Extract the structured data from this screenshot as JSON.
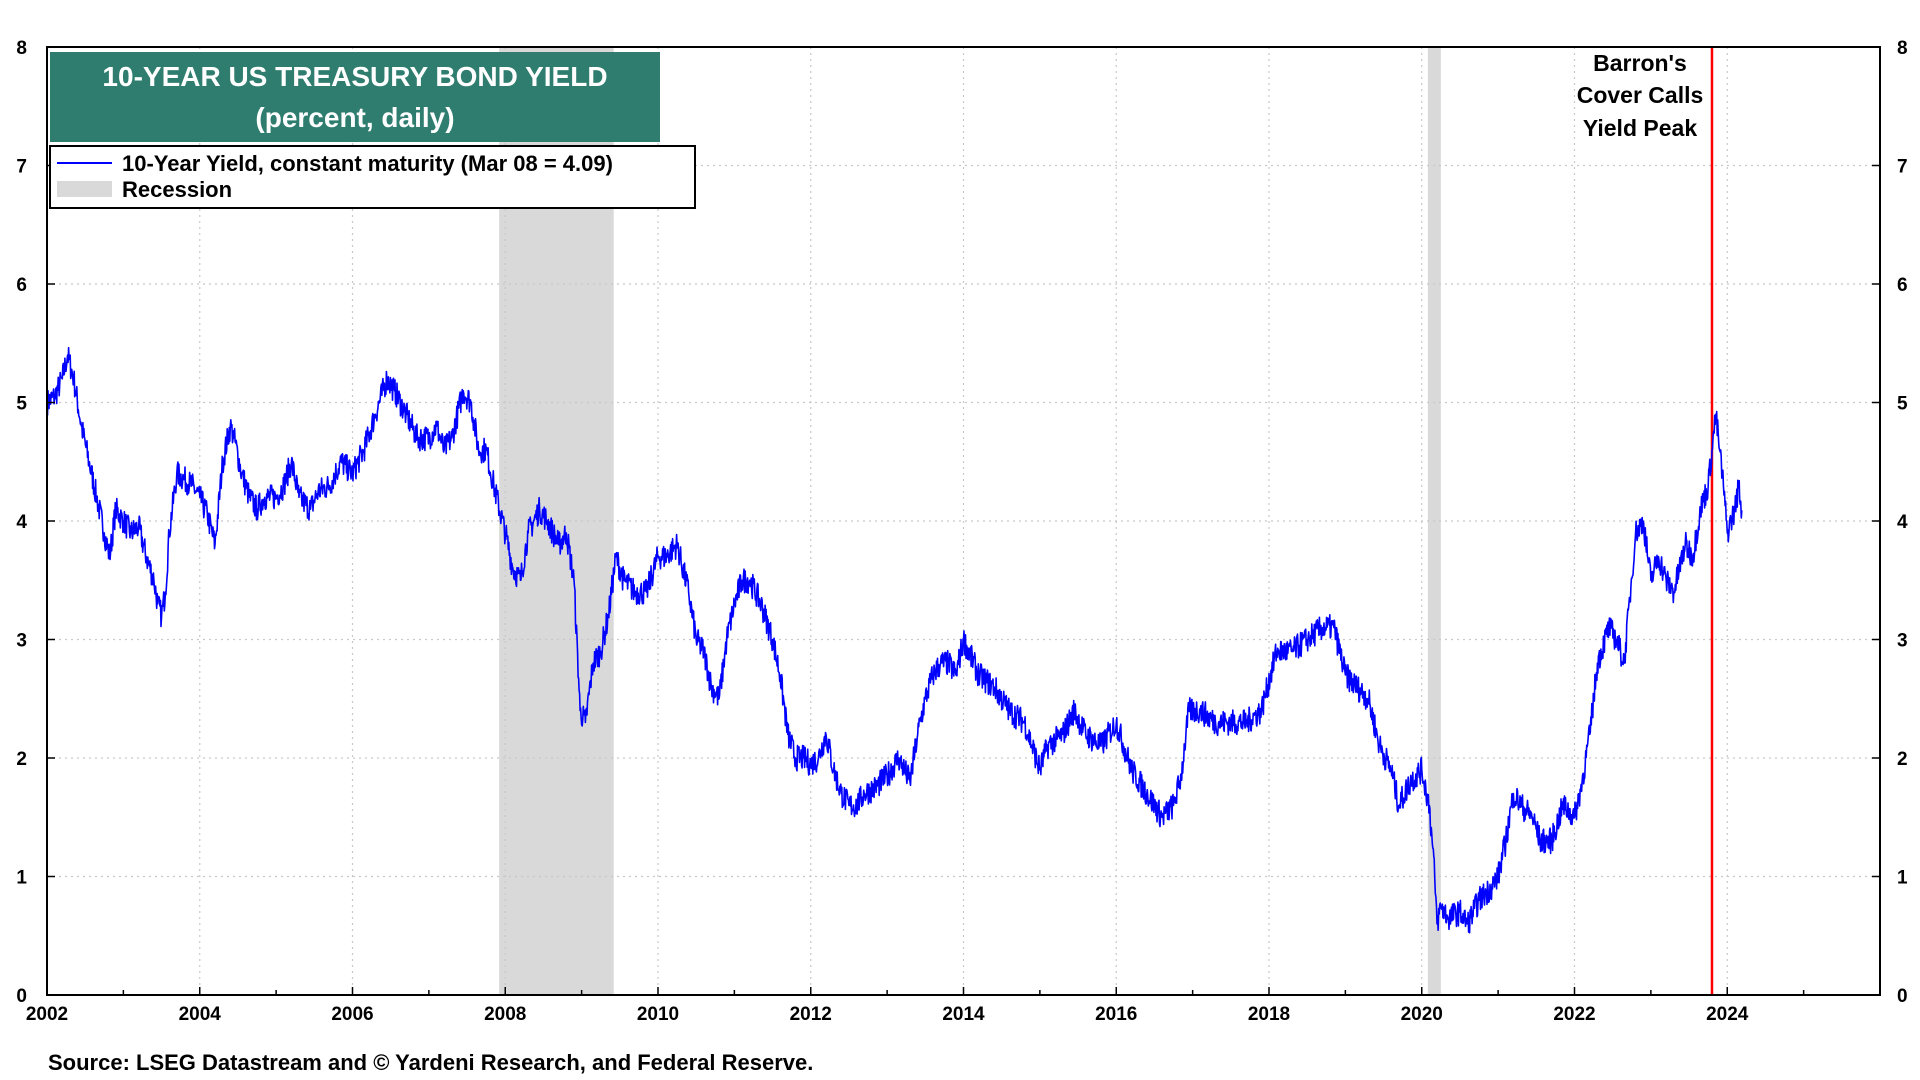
{
  "chart_data": {
    "type": "line",
    "title": "10-YEAR US TREASURY BOND YIELD",
    "subtitle": "(percent, daily)",
    "xlabel": "",
    "ylabel": "",
    "xlim": [
      2002,
      2026
    ],
    "ylim": [
      0,
      8
    ],
    "x_ticks": [
      "2002",
      "2004",
      "2006",
      "2008",
      "2010",
      "2012",
      "2014",
      "2016",
      "2018",
      "2020",
      "2022",
      "2024"
    ],
    "y_ticks": [
      "0",
      "1",
      "2",
      "3",
      "4",
      "5",
      "6",
      "7",
      "8"
    ],
    "grid": true,
    "legend_position": "top-left",
    "colors": {
      "series": "#0000ff",
      "recession": "#d9d9d9",
      "title_box": "#2e7d6e",
      "annotation_line": "#ff0000"
    },
    "series": [
      {
        "name": "10-Year Yield, constant maturity (Mar 08 = 4.09)",
        "x": [
          2002.0,
          2002.1,
          2002.2,
          2002.27,
          2002.35,
          2002.45,
          2002.55,
          2002.65,
          2002.75,
          2002.82,
          2002.9,
          2003.0,
          2003.1,
          2003.2,
          2003.3,
          2003.4,
          2003.45,
          2003.5,
          2003.55,
          2003.6,
          2003.7,
          2003.8,
          2003.9,
          2004.0,
          2004.1,
          2004.2,
          2004.3,
          2004.4,
          2004.45,
          2004.55,
          2004.65,
          2004.75,
          2004.85,
          2005.0,
          2005.1,
          2005.2,
          2005.3,
          2005.45,
          2005.55,
          2005.7,
          2005.85,
          2006.0,
          2006.15,
          2006.3,
          2006.45,
          2006.55,
          2006.7,
          2006.85,
          2007.0,
          2007.1,
          2007.2,
          2007.3,
          2007.45,
          2007.55,
          2007.65,
          2007.75,
          2007.85,
          2008.0,
          2008.1,
          2008.2,
          2008.3,
          2008.45,
          2008.55,
          2008.7,
          2008.8,
          2008.9,
          2008.98,
          2009.05,
          2009.15,
          2009.25,
          2009.35,
          2009.45,
          2009.55,
          2009.7,
          2009.85,
          2010.0,
          2010.1,
          2010.25,
          2010.4,
          2010.5,
          2010.6,
          2010.7,
          2010.8,
          2010.9,
          2011.0,
          2011.1,
          2011.2,
          2011.35,
          2011.5,
          2011.6,
          2011.7,
          2011.8,
          2011.9,
          2012.0,
          2012.1,
          2012.2,
          2012.3,
          2012.4,
          2012.5,
          2012.6,
          2012.7,
          2012.85,
          2013.0,
          2013.15,
          2013.3,
          2013.4,
          2013.5,
          2013.6,
          2013.7,
          2013.8,
          2013.9,
          2014.0,
          2014.2,
          2014.4,
          2014.6,
          2014.8,
          2015.0,
          2015.1,
          2015.3,
          2015.45,
          2015.6,
          2015.8,
          2016.0,
          2016.2,
          2016.4,
          2016.5,
          2016.6,
          2016.75,
          2016.85,
          2016.95,
          2017.1,
          2017.3,
          2017.5,
          2017.7,
          2017.9,
          2018.1,
          2018.3,
          2018.5,
          2018.7,
          2018.85,
          2019.0,
          2019.15,
          2019.3,
          2019.45,
          2019.6,
          2019.7,
          2019.85,
          2020.0,
          2020.1,
          2020.17,
          2020.2,
          2020.25,
          2020.35,
          2020.5,
          2020.6,
          2020.75,
          2020.9,
          2021.0,
          2021.1,
          2021.2,
          2021.3,
          2021.45,
          2021.55,
          2021.7,
          2021.85,
          2022.0,
          2022.1,
          2022.2,
          2022.3,
          2022.45,
          2022.55,
          2022.65,
          2022.8,
          2022.9,
          2023.0,
          2023.1,
          2023.2,
          2023.3,
          2023.45,
          2023.55,
          2023.65,
          2023.75,
          2023.8,
          2023.85,
          2023.9,
          2023.95,
          2024.0,
          2024.05,
          2024.1,
          2024.15,
          2024.19
        ],
        "y": [
          5.0,
          5.05,
          5.2,
          5.4,
          5.2,
          4.8,
          4.5,
          4.2,
          3.9,
          3.7,
          4.1,
          4.0,
          3.9,
          3.95,
          3.7,
          3.5,
          3.3,
          3.2,
          3.4,
          3.9,
          4.4,
          4.35,
          4.3,
          4.2,
          4.05,
          3.8,
          4.5,
          4.8,
          4.7,
          4.4,
          4.2,
          4.1,
          4.2,
          4.2,
          4.3,
          4.5,
          4.2,
          4.1,
          4.25,
          4.3,
          4.5,
          4.4,
          4.6,
          4.9,
          5.2,
          5.1,
          4.9,
          4.7,
          4.7,
          4.8,
          4.6,
          4.7,
          5.1,
          5.0,
          4.6,
          4.6,
          4.3,
          3.9,
          3.6,
          3.5,
          3.9,
          4.1,
          4.0,
          3.8,
          3.9,
          3.5,
          2.4,
          2.3,
          2.8,
          2.9,
          3.2,
          3.7,
          3.5,
          3.4,
          3.4,
          3.7,
          3.7,
          3.8,
          3.4,
          3.0,
          2.9,
          2.6,
          2.5,
          3.0,
          3.3,
          3.5,
          3.5,
          3.3,
          3.0,
          2.7,
          2.2,
          2.0,
          2.0,
          1.95,
          2.0,
          2.2,
          1.9,
          1.7,
          1.6,
          1.6,
          1.7,
          1.75,
          1.85,
          2.0,
          1.8,
          2.2,
          2.5,
          2.7,
          2.8,
          2.8,
          2.7,
          3.0,
          2.7,
          2.6,
          2.4,
          2.3,
          1.9,
          2.1,
          2.2,
          2.4,
          2.2,
          2.1,
          2.3,
          1.9,
          1.7,
          1.6,
          1.5,
          1.6,
          1.85,
          2.4,
          2.4,
          2.3,
          2.3,
          2.3,
          2.4,
          2.9,
          2.9,
          3.0,
          3.1,
          3.1,
          2.7,
          2.6,
          2.5,
          2.1,
          1.9,
          1.6,
          1.8,
          1.9,
          1.6,
          1.0,
          0.6,
          0.75,
          0.65,
          0.7,
          0.6,
          0.8,
          0.9,
          1.0,
          1.3,
          1.7,
          1.6,
          1.5,
          1.3,
          1.3,
          1.6,
          1.5,
          1.8,
          2.2,
          2.8,
          3.1,
          3.0,
          2.8,
          3.9,
          4.0,
          3.5,
          3.7,
          3.5,
          3.4,
          3.8,
          3.7,
          4.1,
          4.3,
          4.6,
          4.9,
          4.6,
          4.3,
          3.9,
          4.0,
          4.1,
          4.3,
          4.09
        ]
      }
    ],
    "recession_label": "Recession",
    "recessions": [
      [
        2007.92,
        2009.42
      ],
      [
        2020.08,
        2020.25
      ]
    ],
    "annotations": [
      {
        "lines": [
          "Barron's",
          "Cover Calls",
          "Yield Peak"
        ],
        "x": 2023.8
      }
    ],
    "source": "Source: LSEG Datastream and © Yardeni Research, and Federal Reserve."
  }
}
